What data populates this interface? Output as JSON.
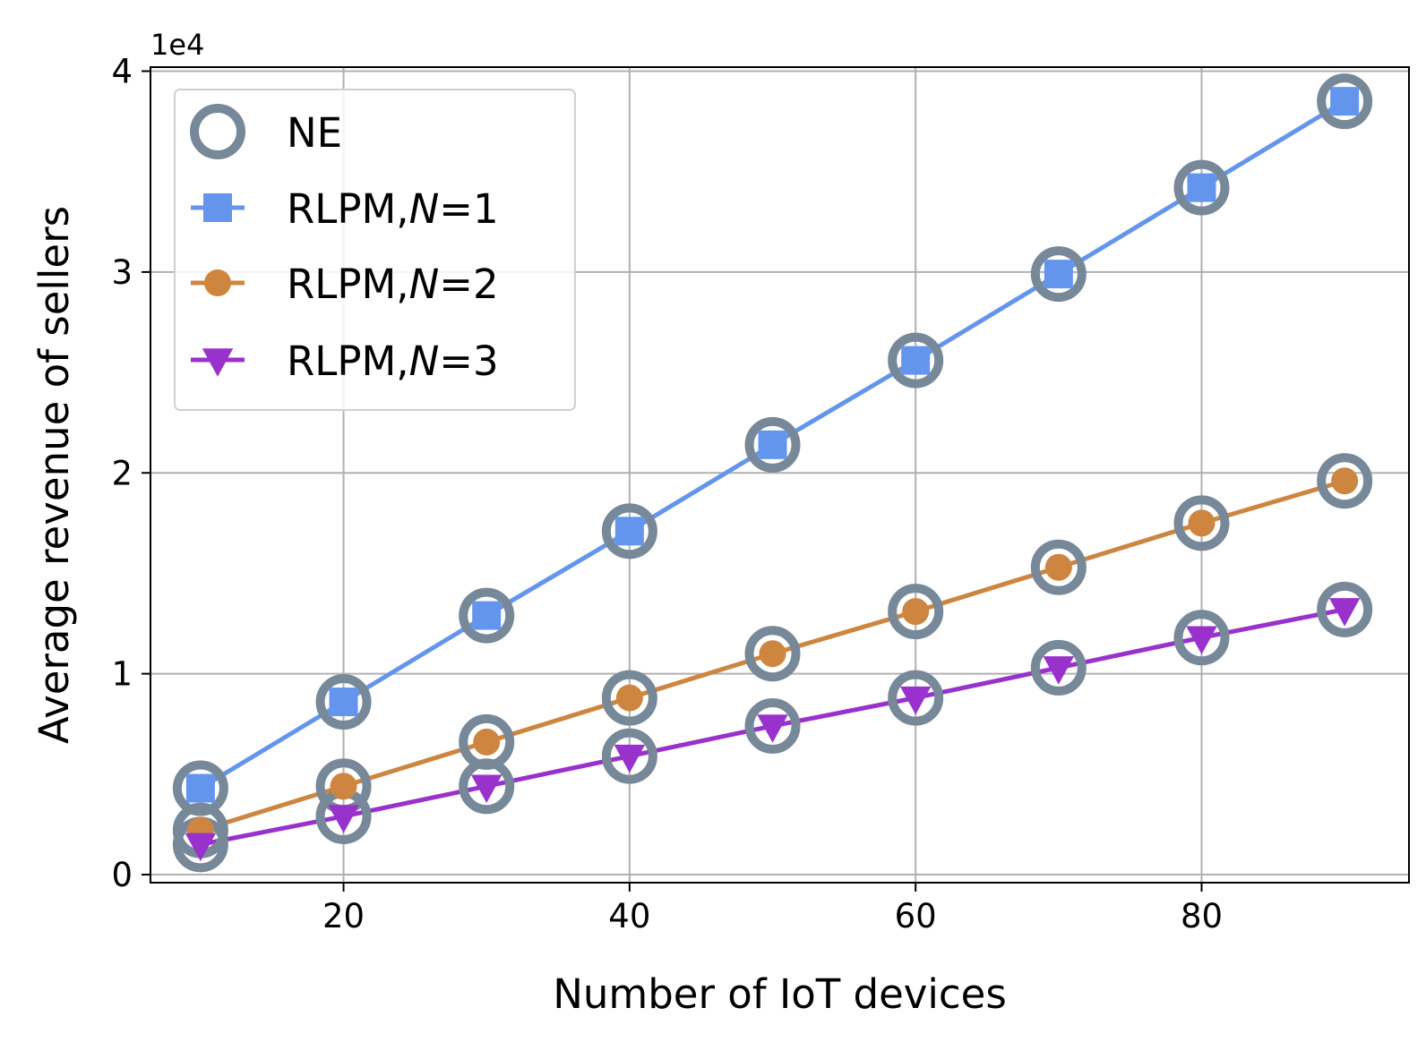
{
  "chart_data": {
    "type": "line",
    "xlabel": "Number of IoT devices",
    "ylabel": "Average revenue of sellers",
    "y_offset_label": "1e4",
    "y_scale": 10000,
    "xlim": [
      6.5,
      94.5
    ],
    "ylim": [
      -0.04,
      4.02
    ],
    "xticks": [
      20,
      40,
      60,
      80
    ],
    "yticks": [
      0,
      1,
      2,
      3,
      4
    ],
    "grid": true,
    "legend_position": "top-left",
    "x": [
      10,
      20,
      30,
      40,
      50,
      60,
      70,
      80,
      90
    ],
    "series": [
      {
        "name": "RLPM,N=1",
        "legend_prefix": "RLPM,",
        "legend_var": "N",
        "legend_suffix": "=1",
        "marker": "square",
        "color": "#6495ED",
        "values": [
          0.43,
          0.86,
          1.29,
          1.71,
          2.14,
          2.56,
          2.99,
          3.42,
          3.85
        ]
      },
      {
        "name": "RLPM,N=2",
        "legend_prefix": "RLPM,",
        "legend_var": "N",
        "legend_suffix": "=2",
        "marker": "circle",
        "color": "#CD853F",
        "values": [
          0.22,
          0.44,
          0.66,
          0.88,
          1.1,
          1.31,
          1.53,
          1.75,
          1.96
        ]
      },
      {
        "name": "RLPM,N=3",
        "legend_prefix": "RLPM,",
        "legend_var": "N",
        "legend_suffix": "=3",
        "marker": "triangle-down",
        "color": "#9932CC",
        "values": [
          0.15,
          0.29,
          0.44,
          0.59,
          0.74,
          0.88,
          1.03,
          1.18,
          1.32
        ]
      }
    ],
    "ne": {
      "name": "NE",
      "marker": "hollow-circle",
      "color": "#778899",
      "series_values": [
        [
          0.43,
          0.86,
          1.29,
          1.71,
          2.14,
          2.56,
          2.99,
          3.42,
          3.85
        ],
        [
          0.22,
          0.44,
          0.66,
          0.88,
          1.1,
          1.31,
          1.53,
          1.75,
          1.96
        ],
        [
          0.15,
          0.29,
          0.44,
          0.59,
          0.74,
          0.88,
          1.03,
          1.18,
          1.32
        ]
      ]
    }
  }
}
